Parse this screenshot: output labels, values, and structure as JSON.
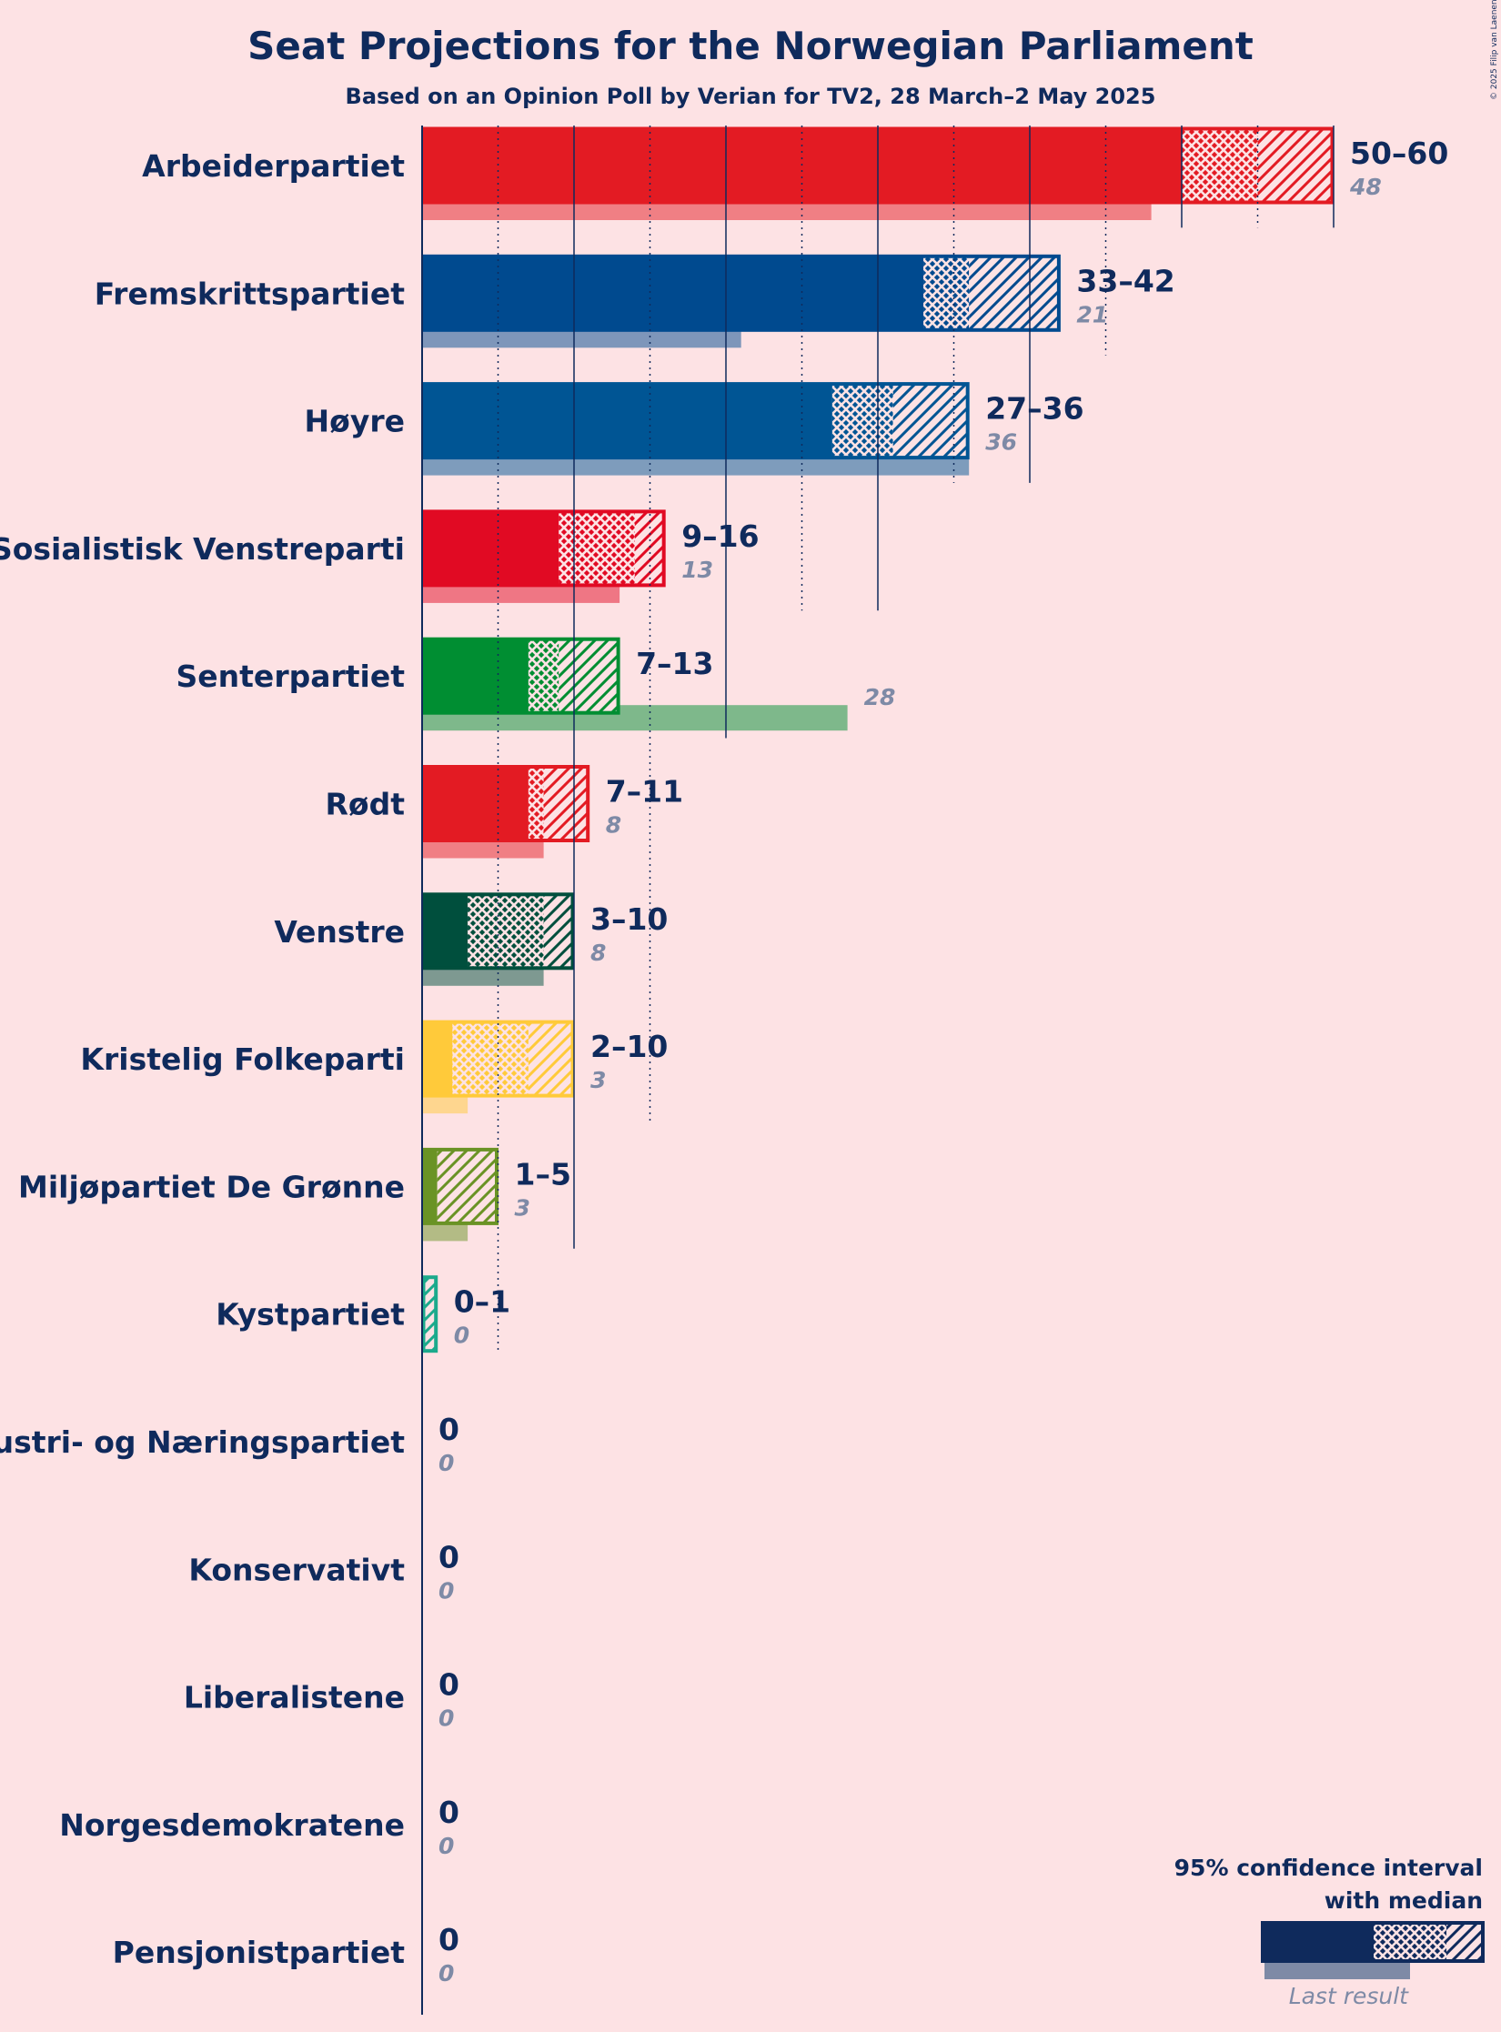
{
  "copyright": "© 2025 Filip van Laenen",
  "chart_data": {
    "type": "bar",
    "orientation": "horizontal",
    "title": "Seat Projections for the Norwegian Parliament",
    "subtitle": "Based on an Opinion Poll by Verian for TV2, 28 March–2 May 2025",
    "xlim": [
      0,
      60
    ],
    "gridlines_solid": [
      10,
      20,
      30,
      40,
      50,
      60
    ],
    "gridlines_dotted": [
      5,
      15,
      25,
      35,
      45,
      55
    ],
    "series_names": [
      "95% confidence interval low",
      "median",
      "95% confidence interval high",
      "last result"
    ],
    "parties": [
      {
        "name": "Arbeiderpartiet",
        "low": 50,
        "median": 55,
        "high": 60,
        "last": 48,
        "range_label": "50–60",
        "last_label": "48",
        "color": "#E31B23"
      },
      {
        "name": "Fremskrittspartiet",
        "low": 33,
        "median": 36,
        "high": 42,
        "last": 21,
        "range_label": "33–42",
        "last_label": "21",
        "color": "#004A8F"
      },
      {
        "name": "Høyre",
        "low": 27,
        "median": 31,
        "high": 36,
        "last": 36,
        "range_label": "27–36",
        "last_label": "36",
        "color": "#005594"
      },
      {
        "name": "Sosialistisk Venstreparti",
        "low": 9,
        "median": 14,
        "high": 16,
        "last": 13,
        "range_label": "9–16",
        "last_label": "13",
        "color": "#E10A23"
      },
      {
        "name": "Senterpartiet",
        "low": 7,
        "median": 9,
        "high": 13,
        "last": 28,
        "range_label": "7–13",
        "last_label": "28",
        "color": "#008E32"
      },
      {
        "name": "Rødt",
        "low": 7,
        "median": 8,
        "high": 11,
        "last": 8,
        "range_label": "7–11",
        "last_label": "8",
        "color": "#E31B23"
      },
      {
        "name": "Venstre",
        "low": 3,
        "median": 8,
        "high": 10,
        "last": 8,
        "range_label": "3–10",
        "last_label": "8",
        "color": "#004F3D"
      },
      {
        "name": "Kristelig Folkeparti",
        "low": 2,
        "median": 7,
        "high": 10,
        "last": 3,
        "range_label": "2–10",
        "last_label": "3",
        "color": "#FFCA3A"
      },
      {
        "name": "Miljøpartiet De Grønne",
        "low": 1,
        "median": 1,
        "high": 5,
        "last": 3,
        "range_label": "1–5",
        "last_label": "3",
        "color": "#6A9325"
      },
      {
        "name": "Kystpartiet",
        "low": 0,
        "median": 0,
        "high": 1,
        "last": 0,
        "range_label": "0–1",
        "last_label": "0",
        "color": "#1BAA8C"
      },
      {
        "name": "Industri- og Næringspartiet",
        "low": 0,
        "median": 0,
        "high": 0,
        "last": 0,
        "range_label": "0",
        "last_label": "0",
        "color": "#0F2A5C"
      },
      {
        "name": "Konservativt",
        "low": 0,
        "median": 0,
        "high": 0,
        "last": 0,
        "range_label": "0",
        "last_label": "0",
        "color": "#0F2A5C"
      },
      {
        "name": "Liberalistene",
        "low": 0,
        "median": 0,
        "high": 0,
        "last": 0,
        "range_label": "0",
        "last_label": "0",
        "color": "#0F2A5C"
      },
      {
        "name": "Norgesdemokratene",
        "low": 0,
        "median": 0,
        "high": 0,
        "last": 0,
        "range_label": "0",
        "last_label": "0",
        "color": "#0F2A5C"
      },
      {
        "name": "Pensjonistpartiet",
        "low": 0,
        "median": 0,
        "high": 0,
        "last": 0,
        "range_label": "0",
        "last_label": "0",
        "color": "#0F2A5C"
      }
    ],
    "legend": {
      "position": "bottom-right",
      "title_line1": "95% confidence interval",
      "title_line2": "with median",
      "last_result": "Last result"
    }
  }
}
